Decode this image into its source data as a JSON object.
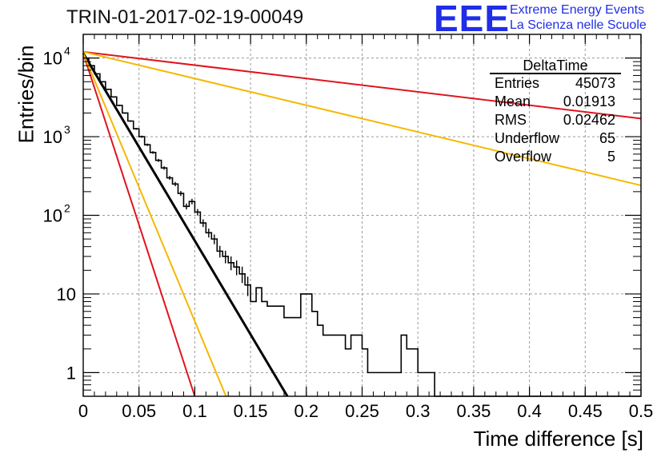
{
  "chart_data": {
    "type": "line",
    "title": "TRIN-01-2017-02-19-00049",
    "xlabel": "Time difference [s]",
    "ylabel": "Entries/bin",
    "xlim": [
      0,
      0.5
    ],
    "ylim": [
      0.5,
      20000
    ],
    "yscale": "log",
    "grid": true,
    "x_ticks": [
      "0",
      "0.05",
      "0.1",
      "0.15",
      "0.2",
      "0.25",
      "0.3",
      "0.35",
      "0.4",
      "0.45",
      "0.5"
    ],
    "y_ticks": [
      {
        "value": 1,
        "label": "1"
      },
      {
        "value": 10,
        "label": "10"
      },
      {
        "value": 100,
        "label": "10",
        "exp": "2"
      },
      {
        "value": 1000,
        "label": "10",
        "exp": "3"
      },
      {
        "value": 10000,
        "label": "10",
        "exp": "4"
      }
    ],
    "stats": {
      "name": "DeltaTime",
      "rows": [
        {
          "label": "Entries",
          "value": "45073"
        },
        {
          "label": "Mean",
          "value": "0.01913"
        },
        {
          "label": "RMS",
          "value": "0.02462"
        },
        {
          "label": "Underflow",
          "value": "65"
        },
        {
          "label": "Overflow",
          "value": "5"
        }
      ]
    },
    "histogram": {
      "bin_width": 0.005,
      "counts": [
        10000,
        8000,
        6300,
        5000,
        4000,
        3200,
        2500,
        2000,
        1580,
        1260,
        1000,
        790,
        630,
        500,
        400,
        300,
        250,
        190,
        130,
        150,
        110,
        80,
        60,
        50,
        35,
        30,
        25,
        22,
        18,
        13,
        8,
        12,
        8,
        7,
        7,
        7,
        5,
        5,
        5,
        10,
        10,
        6,
        4,
        3,
        3,
        3,
        3,
        2,
        3,
        3,
        2,
        1,
        1,
        1,
        1,
        1,
        1,
        3,
        2,
        2,
        1,
        1,
        1,
        0,
        0,
        0,
        0,
        0,
        0,
        0,
        0,
        0,
        0,
        0,
        0,
        0,
        0,
        0,
        0,
        0,
        0,
        0,
        0,
        0,
        0,
        0,
        0,
        0,
        0,
        0,
        0,
        0,
        0,
        0,
        0,
        0,
        0,
        0,
        0,
        0
      ]
    },
    "series": [
      {
        "color": "#000000",
        "x": [
          0,
          0.183
        ],
        "y": [
          11500,
          0.5
        ]
      },
      {
        "color": "#e0141e",
        "x": [
          0,
          0.1
        ],
        "y": [
          11500,
          0.5
        ]
      },
      {
        "color": "#f5b800",
        "x": [
          0,
          0.128
        ],
        "y": [
          11500,
          0.5
        ]
      },
      {
        "color": "#e0141e",
        "x": [
          0,
          0.5
        ],
        "y": [
          12000,
          1700
        ]
      },
      {
        "color": "#f5b800",
        "x": [
          0,
          0.5
        ],
        "y": [
          12000,
          240
        ]
      }
    ]
  },
  "header": {
    "logo": "EEE",
    "line1": "Extreme Energy Events",
    "line2": "La Scienza nelle Scuole"
  }
}
